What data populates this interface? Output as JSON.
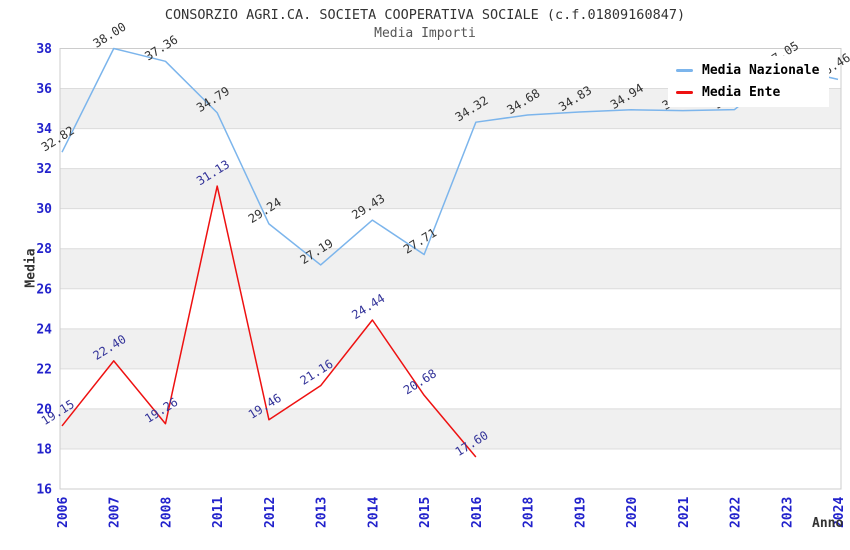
{
  "chart_data": {
    "type": "line",
    "title": "CONSORZIO AGRI.CA. SOCIETA COOPERATIVA SOCIALE (c.f.01809160847)",
    "subtitle": "Media Importi",
    "xlabel": "Anno",
    "ylabel": "Media",
    "ylim": [
      16,
      38
    ],
    "ytick_step": 2,
    "ytick_labels": [
      "16",
      "18",
      "20",
      "22",
      "24",
      "26",
      "28",
      "30",
      "32",
      "34",
      "36",
      "38"
    ],
    "categories": [
      "2006",
      "2007",
      "2008",
      "2011",
      "2012",
      "2013",
      "2014",
      "2015",
      "2016",
      "2018",
      "2019",
      "2020",
      "2021",
      "2022",
      "2023",
      "2024"
    ],
    "grid": "horizontal-bands-alternating",
    "legend_position": "top-right-overlay",
    "series": [
      {
        "name": "Media Nazionale",
        "color": "#7cb5ec",
        "label_color": "#333333",
        "values": [
          32.82,
          38.0,
          37.36,
          34.79,
          29.24,
          27.19,
          29.43,
          27.71,
          34.32,
          34.68,
          34.83,
          34.94,
          34.9,
          34.95,
          37.05,
          36.46
        ],
        "labels": [
          "32.82",
          "38.00",
          "37.36",
          "34.79",
          "29.24",
          "27.19",
          "29.43",
          "27.71",
          "34.32",
          "34.68",
          "34.83",
          "34.94",
          "34.90",
          "34.95",
          "37.05",
          "36.46"
        ]
      },
      {
        "name": "Media Ente",
        "color": "#ee1111",
        "label_color": "#333399",
        "values": [
          19.15,
          22.4,
          19.26,
          31.13,
          19.46,
          21.16,
          24.44,
          20.68,
          17.6
        ],
        "labels": [
          "19.15",
          "22.40",
          "19.26",
          "31.13",
          "19.46",
          "21.16",
          "24.44",
          "20.68",
          "17.60"
        ]
      }
    ],
    "colors": {
      "axis_tick_label": "#2222cc",
      "band_gray": "#f0f0f0",
      "gridline": "#dcdcdc",
      "plot_border": "#cccccc",
      "title_text": "#333333"
    }
  }
}
